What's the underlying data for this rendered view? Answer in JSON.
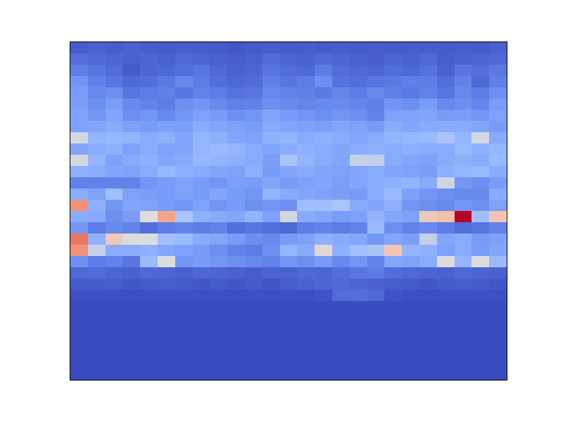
{
  "chart_data": {
    "type": "heatmap",
    "color": "coolwarm",
    "tick_labels": false,
    "z": [
      [
        0.05,
        0.06,
        0.05,
        0.06,
        0.05,
        0.04,
        0.05,
        0.05,
        0.04,
        0.03,
        0.04,
        0.05,
        0.04,
        0.05,
        0.04,
        0.05,
        0.04,
        0.05,
        0.04,
        0.05,
        0.05,
        0.04,
        0.05,
        0.04,
        0.06
      ],
      [
        0.1,
        0.08,
        0.07,
        0.06,
        0.07,
        0.06,
        0.08,
        0.07,
        0.06,
        0.05,
        0.06,
        0.09,
        0.07,
        0.06,
        0.08,
        0.07,
        0.06,
        0.05,
        0.07,
        0.06,
        0.08,
        0.05,
        0.06,
        0.07,
        0.08
      ],
      [
        0.15,
        0.12,
        0.09,
        0.04,
        0.07,
        0.08,
        0.1,
        0.12,
        0.08,
        0.06,
        0.07,
        0.12,
        0.09,
        0.08,
        0.14,
        0.09,
        0.08,
        0.07,
        0.1,
        0.08,
        0.11,
        0.06,
        0.12,
        0.1,
        0.13
      ],
      [
        0.22,
        0.16,
        0.12,
        0.08,
        0.1,
        0.13,
        0.18,
        0.14,
        0.1,
        0.08,
        0.09,
        0.15,
        0.12,
        0.14,
        0.2,
        0.11,
        0.1,
        0.12,
        0.13,
        0.15,
        0.14,
        0.1,
        0.16,
        0.08,
        0.15
      ],
      [
        0.24,
        0.18,
        0.2,
        0.12,
        0.14,
        0.15,
        0.12,
        0.16,
        0.14,
        0.11,
        0.12,
        0.18,
        0.16,
        0.15,
        0.13,
        0.17,
        0.14,
        0.18,
        0.15,
        0.13,
        0.16,
        0.12,
        0.18,
        0.14,
        0.2
      ],
      [
        0.25,
        0.2,
        0.24,
        0.18,
        0.16,
        0.14,
        0.2,
        0.22,
        0.18,
        0.15,
        0.16,
        0.2,
        0.18,
        0.17,
        0.18,
        0.18,
        0.17,
        0.15,
        0.22,
        0.2,
        0.24,
        0.18,
        0.2,
        0.17,
        0.24
      ],
      [
        0.26,
        0.22,
        0.28,
        0.2,
        0.22,
        0.18,
        0.22,
        0.26,
        0.24,
        0.2,
        0.22,
        0.28,
        0.24,
        0.22,
        0.2,
        0.22,
        0.2,
        0.16,
        0.26,
        0.26,
        0.28,
        0.24,
        0.25,
        0.22,
        0.26
      ],
      [
        0.26,
        0.28,
        0.3,
        0.26,
        0.24,
        0.26,
        0.25,
        0.3,
        0.28,
        0.26,
        0.24,
        0.3,
        0.28,
        0.26,
        0.25,
        0.28,
        0.26,
        0.24,
        0.3,
        0.28,
        0.3,
        0.3,
        0.3,
        0.28,
        0.24
      ],
      [
        0.48,
        0.34,
        0.35,
        0.34,
        0.3,
        0.32,
        0.28,
        0.34,
        0.32,
        0.28,
        0.26,
        0.33,
        0.34,
        0.3,
        0.32,
        0.3,
        0.28,
        0.3,
        0.34,
        0.35,
        0.36,
        0.4,
        0.34,
        0.48,
        0.3
      ],
      [
        0.28,
        0.3,
        0.32,
        0.26,
        0.3,
        0.26,
        0.28,
        0.34,
        0.36,
        0.34,
        0.3,
        0.28,
        0.3,
        0.32,
        0.3,
        0.28,
        0.3,
        0.32,
        0.3,
        0.32,
        0.3,
        0.3,
        0.36,
        0.32,
        0.34
      ],
      [
        0.48,
        0.34,
        0.26,
        0.3,
        0.32,
        0.28,
        0.3,
        0.35,
        0.34,
        0.32,
        0.3,
        0.25,
        0.4,
        0.34,
        0.3,
        0.28,
        0.45,
        0.45,
        0.3,
        0.28,
        0.26,
        0.3,
        0.32,
        0.3,
        0.36
      ],
      [
        0.32,
        0.3,
        0.28,
        0.26,
        0.3,
        0.35,
        0.32,
        0.3,
        0.28,
        0.26,
        0.32,
        0.24,
        0.28,
        0.3,
        0.28,
        0.26,
        0.28,
        0.3,
        0.28,
        0.26,
        0.25,
        0.32,
        0.34,
        0.36,
        0.3
      ],
      [
        0.16,
        0.16,
        0.16,
        0.16,
        0.22,
        0.24,
        0.26,
        0.24,
        0.22,
        0.25,
        0.24,
        0.28,
        0.24,
        0.26,
        0.28,
        0.25,
        0.28,
        0.3,
        0.32,
        0.34,
        0.3,
        0.47,
        0.22,
        0.2,
        0.24
      ],
      [
        0.3,
        0.26,
        0.38,
        0.26,
        0.25,
        0.24,
        0.26,
        0.24,
        0.28,
        0.24,
        0.22,
        0.34,
        0.3,
        0.28,
        0.26,
        0.25,
        0.24,
        0.3,
        0.36,
        0.26,
        0.22,
        0.2,
        0.18,
        0.18,
        0.3
      ],
      [
        0.72,
        0.32,
        0.22,
        0.28,
        0.26,
        0.24,
        0.22,
        0.26,
        0.22,
        0.24,
        0.2,
        0.22,
        0.2,
        0.38,
        0.38,
        0.4,
        0.3,
        0.28,
        0.32,
        0.22,
        0.2,
        0.18,
        0.22,
        0.2,
        0.26
      ],
      [
        0.3,
        0.3,
        0.2,
        0.24,
        0.5,
        0.68,
        0.4,
        0.32,
        0.3,
        0.28,
        0.34,
        0.26,
        0.48,
        0.3,
        0.28,
        0.24,
        0.26,
        0.34,
        0.28,
        0.26,
        0.58,
        0.62,
        1.0,
        0.38,
        0.6
      ],
      [
        0.22,
        0.14,
        0.18,
        0.16,
        0.1,
        0.14,
        0.16,
        0.14,
        0.16,
        0.1,
        0.12,
        0.1,
        0.08,
        0.14,
        0.16,
        0.14,
        0.16,
        0.36,
        0.2,
        0.16,
        0.18,
        0.14,
        0.1,
        0.12,
        0.16
      ],
      [
        0.78,
        0.32,
        0.58,
        0.5,
        0.5,
        0.38,
        0.36,
        0.3,
        0.28,
        0.24,
        0.2,
        0.18,
        0.24,
        0.26,
        0.32,
        0.3,
        0.28,
        0.22,
        0.28,
        0.25,
        0.45,
        0.28,
        0.3,
        0.24,
        0.26
      ],
      [
        0.72,
        0.45,
        0.3,
        0.3,
        0.32,
        0.28,
        0.26,
        0.24,
        0.2,
        0.16,
        0.14,
        0.2,
        0.34,
        0.3,
        0.52,
        0.32,
        0.38,
        0.4,
        0.6,
        0.34,
        0.32,
        0.26,
        0.3,
        0.24,
        0.28
      ],
      [
        0.2,
        0.14,
        0.16,
        0.12,
        0.36,
        0.5,
        0.22,
        0.24,
        0.22,
        0.2,
        0.18,
        0.16,
        0.22,
        0.2,
        0.24,
        0.18,
        0.22,
        0.16,
        0.28,
        0.26,
        0.3,
        0.5,
        0.34,
        0.5,
        0.36
      ],
      [
        0.08,
        0.09,
        0.07,
        0.06,
        0.08,
        0.07,
        0.06,
        0.08,
        0.07,
        0.06,
        0.05,
        0.07,
        0.06,
        0.08,
        0.07,
        0.1,
        0.12,
        0.14,
        0.1,
        0.08,
        0.07,
        0.06,
        0.08,
        0.07,
        0.06
      ],
      [
        0.04,
        0.04,
        0.05,
        0.03,
        0.04,
        0.05,
        0.04,
        0.03,
        0.04,
        0.03,
        0.04,
        0.03,
        0.05,
        0.06,
        0.07,
        0.08,
        0.07,
        0.06,
        0.05,
        0.04,
        0.03,
        0.04,
        0.05,
        0.04,
        0.03
      ],
      [
        0.01,
        0.01,
        0.01,
        0.01,
        0.01,
        0.01,
        0.01,
        0.01,
        0.01,
        0.01,
        0.01,
        0.01,
        0.01,
        0.01,
        0.02,
        0.09,
        0.1,
        0.08,
        0.02,
        0.01,
        0.01,
        0.01,
        0.01,
        0.01,
        0.01
      ],
      [
        0,
        0,
        0,
        0,
        0,
        0,
        0,
        0,
        0,
        0,
        0,
        0,
        0,
        0,
        0,
        0,
        0,
        0,
        0,
        0,
        0,
        0,
        0,
        0,
        0
      ],
      [
        0,
        0,
        0,
        0,
        0,
        0,
        0,
        0,
        0,
        0,
        0,
        0,
        0,
        0,
        0,
        0,
        0,
        0,
        0,
        0,
        0,
        0,
        0,
        0,
        0
      ],
      [
        0,
        0,
        0,
        0,
        0,
        0,
        0,
        0,
        0,
        0,
        0,
        0,
        0,
        0,
        0,
        0,
        0,
        0,
        0,
        0,
        0,
        0,
        0,
        0,
        0
      ],
      [
        0,
        0,
        0,
        0,
        0,
        0,
        0,
        0,
        0,
        0,
        0,
        0,
        0,
        0,
        0,
        0,
        0,
        0,
        0,
        0,
        0,
        0,
        0,
        0,
        0
      ],
      [
        0,
        0,
        0,
        0,
        0,
        0,
        0,
        0,
        0,
        0,
        0,
        0,
        0,
        0,
        0,
        0,
        0,
        0,
        0,
        0,
        0,
        0,
        0,
        0,
        0
      ],
      [
        0,
        0,
        0,
        0,
        0,
        0,
        0,
        0,
        0,
        0,
        0,
        0,
        0,
        0,
        0,
        0,
        0,
        0,
        0,
        0,
        0,
        0,
        0,
        0,
        0
      ],
      [
        0,
        0,
        0,
        0,
        0,
        0,
        0,
        0,
        0,
        0,
        0,
        0,
        0,
        0,
        0,
        0,
        0,
        0,
        0,
        0,
        0,
        0,
        0,
        0,
        0
      ]
    ]
  }
}
